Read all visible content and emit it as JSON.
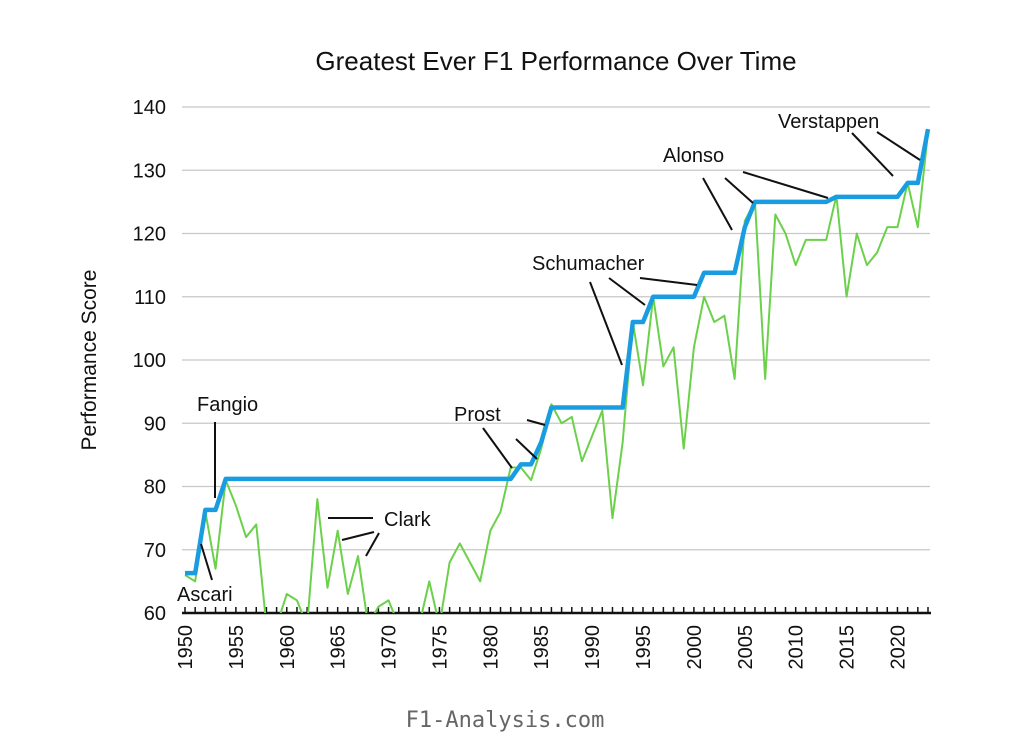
{
  "chart_data": {
    "type": "line",
    "title": "Greatest Ever F1 Performance Over Time",
    "xlabel": "",
    "ylabel": "Performance Score",
    "xlim": [
      1950,
      2023
    ],
    "ylim": [
      60,
      140
    ],
    "yticks": [
      60,
      70,
      80,
      90,
      100,
      110,
      120,
      130,
      140
    ],
    "xticks": [
      1950,
      1955,
      1960,
      1965,
      1970,
      1975,
      1980,
      1985,
      1990,
      1995,
      2000,
      2005,
      2010,
      2015,
      2020
    ],
    "grid": "horizontal",
    "x": [
      1950,
      1951,
      1952,
      1953,
      1954,
      1955,
      1956,
      1957,
      1958,
      1959,
      1960,
      1961,
      1962,
      1963,
      1964,
      1965,
      1966,
      1967,
      1968,
      1969,
      1970,
      1971,
      1972,
      1973,
      1974,
      1975,
      1976,
      1977,
      1978,
      1979,
      1980,
      1981,
      1982,
      1983,
      1984,
      1985,
      1986,
      1987,
      1988,
      1989,
      1990,
      1991,
      1992,
      1993,
      1994,
      1995,
      1996,
      1997,
      1998,
      1999,
      2000,
      2001,
      2002,
      2003,
      2004,
      2005,
      2006,
      2007,
      2008,
      2009,
      2010,
      2011,
      2012,
      2013,
      2014,
      2015,
      2016,
      2017,
      2018,
      2019,
      2020,
      2021,
      2022,
      2023
    ],
    "series": [
      {
        "color": "#6cd14a",
        "values": [
          66,
          65,
          76,
          67,
          81,
          77,
          72,
          74,
          55,
          55,
          63,
          62,
          55,
          78,
          64,
          73,
          63,
          69,
          55,
          61,
          62,
          58,
          55,
          58,
          65,
          57,
          68,
          71,
          68,
          65,
          73,
          76,
          83,
          83,
          81,
          86,
          93,
          90,
          91,
          84,
          88,
          92,
          75,
          87,
          106,
          96,
          110,
          99,
          102,
          86,
          102,
          110,
          106,
          107,
          97,
          122,
          125,
          97,
          123,
          120,
          115,
          119,
          119,
          119,
          126,
          110,
          120,
          115,
          117,
          121,
          121,
          128,
          121,
          136
        ]
      },
      {
        "color": "#1a9de0",
        "values": [
          66.3,
          66.3,
          76.3,
          76.3,
          81.2,
          81.2,
          81.2,
          81.2,
          81.2,
          81.2,
          81.2,
          81.2,
          81.2,
          81.2,
          81.2,
          81.2,
          81.2,
          81.2,
          81.2,
          81.2,
          81.2,
          81.2,
          81.2,
          81.2,
          81.2,
          81.2,
          81.2,
          81.2,
          81.2,
          81.2,
          81.2,
          81.2,
          81.2,
          83.5,
          83.5,
          87,
          92.5,
          92.5,
          92.5,
          92.5,
          92.5,
          92.5,
          92.5,
          92.5,
          106,
          106,
          110,
          110,
          110,
          110,
          110,
          113.8,
          113.8,
          113.8,
          113.8,
          121,
          125,
          125,
          125,
          125,
          125,
          125,
          125,
          125,
          125.8,
          125.8,
          125.8,
          125.8,
          125.8,
          125.8,
          125.8,
          128,
          128,
          136.5
        ]
      }
    ],
    "annotations": [
      "Fangio",
      "Ascari",
      "Clark",
      "Prost",
      "Schumacher",
      "Alonso",
      "Verstappen"
    ]
  },
  "watermark": "F1-Analysis.com"
}
